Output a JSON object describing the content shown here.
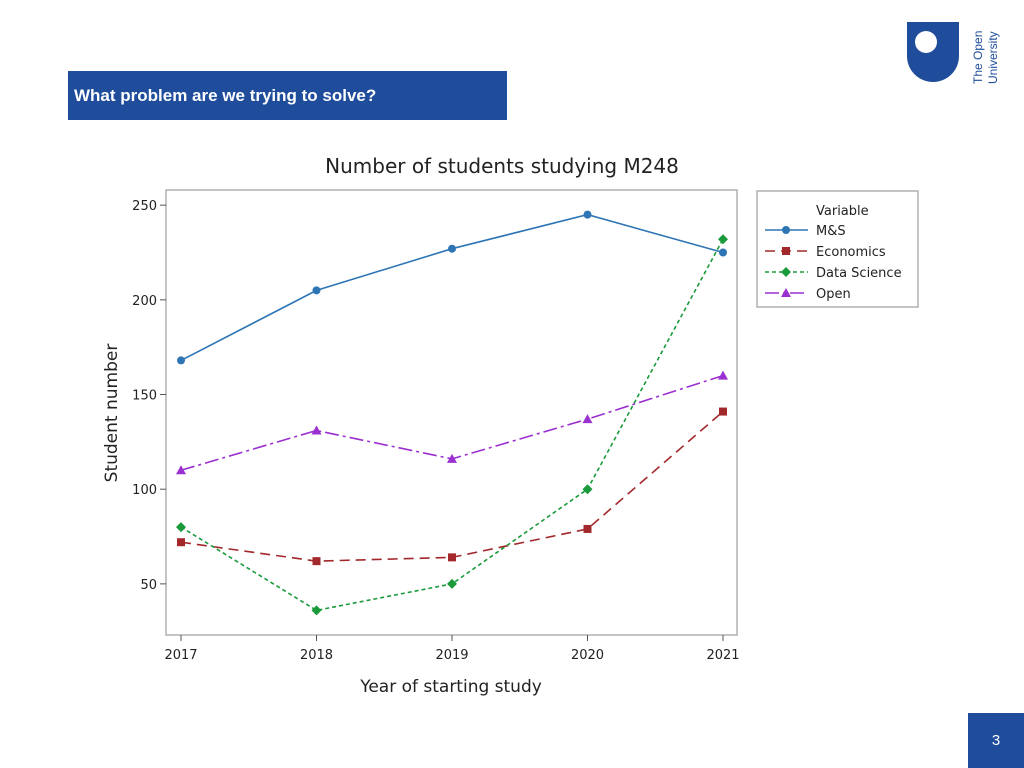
{
  "slide": {
    "heading": "What problem are we trying to solve?",
    "page_number": "3",
    "logo_line1": "The Open",
    "logo_line2": "University",
    "brand_color": "#1f4d9c"
  },
  "chart_data": {
    "type": "line",
    "title": "Number of students studying M248",
    "xlabel": "Year of starting study",
    "ylabel": "Student number",
    "x": [
      2017,
      2018,
      2019,
      2020,
      2021
    ],
    "x_ticks": [
      "2017",
      "2018",
      "2019",
      "2020",
      "2021"
    ],
    "y_ticks": [
      "50",
      "100",
      "150",
      "200",
      "250"
    ],
    "ylim": [
      23,
      258
    ],
    "grid": false,
    "legend_title": "Variable",
    "legend_position": "right",
    "series": [
      {
        "name": "M&S",
        "values": [
          168,
          205,
          227,
          245,
          225
        ],
        "color": "#2e75b6",
        "marker": "circle",
        "dash": ""
      },
      {
        "name": "Economics",
        "values": [
          72,
          62,
          64,
          79,
          141
        ],
        "color": "#a3282b",
        "marker": "square",
        "dash": "10,6"
      },
      {
        "name": "Data Science",
        "values": [
          80,
          36,
          50,
          100,
          232
        ],
        "color": "#1a9a3a",
        "marker": "diamond",
        "dash": "4,3"
      },
      {
        "name": "Open",
        "values": [
          110,
          131,
          116,
          137,
          160
        ],
        "color": "#9b30d0",
        "marker": "triangle",
        "dash": "14,4,3,4"
      }
    ]
  }
}
